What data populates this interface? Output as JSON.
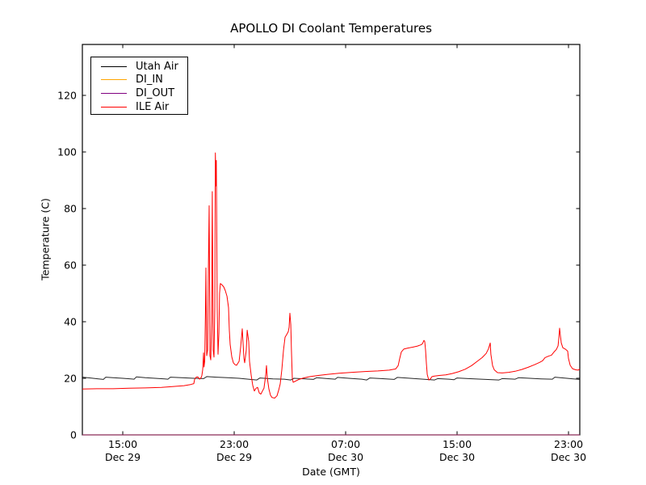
{
  "chart_data": {
    "type": "line",
    "title": "APOLLO DI Coolant Temperatures",
    "xlabel": "Date (GMT)",
    "ylabel": "Temperature (C)",
    "x_unit": "hours since Dec 29 00:00 GMT",
    "xlim": [
      12.1,
      47.81
    ],
    "ylim": [
      0,
      138
    ],
    "grid": false,
    "legend_position": "upper left",
    "x_ticks": [
      {
        "t": 15,
        "time": "15:00",
        "date": "Dec 29"
      },
      {
        "t": 23,
        "time": "23:00",
        "date": "Dec 29"
      },
      {
        "t": 31,
        "time": "07:00",
        "date": "Dec 30"
      },
      {
        "t": 39,
        "time": "15:00",
        "date": "Dec 30"
      },
      {
        "t": 47,
        "time": "23:00",
        "date": "Dec 30"
      }
    ],
    "y_ticks": [
      0,
      20,
      40,
      60,
      80,
      100,
      120
    ],
    "series": [
      {
        "name": "Utah Air",
        "color": "#000000",
        "opacity": 0.85,
        "points": [
          [
            12.1,
            20.4
          ],
          [
            12.68,
            20.1
          ],
          [
            13.26,
            19.8
          ],
          [
            13.61,
            19.6
          ],
          [
            13.78,
            20.4
          ],
          [
            14.3,
            20.2
          ],
          [
            15.0,
            20.0
          ],
          [
            15.58,
            19.8
          ],
          [
            15.81,
            19.7
          ],
          [
            15.98,
            20.5
          ],
          [
            16.62,
            20.2
          ],
          [
            17.32,
            20.0
          ],
          [
            18.01,
            19.8
          ],
          [
            18.24,
            19.7
          ],
          [
            18.42,
            20.4
          ],
          [
            19.23,
            20.2
          ],
          [
            20.1,
            20.0
          ],
          [
            20.8,
            19.9
          ],
          [
            21.03,
            20.6
          ],
          [
            21.72,
            20.4
          ],
          [
            22.54,
            20.2
          ],
          [
            23.35,
            20.0
          ],
          [
            24.16,
            19.6
          ],
          [
            24.62,
            19.4
          ],
          [
            24.85,
            20.1
          ],
          [
            25.78,
            19.8
          ],
          [
            26.59,
            19.7
          ],
          [
            27.06,
            19.4
          ],
          [
            27.29,
            20.0
          ],
          [
            28.1,
            19.8
          ],
          [
            28.68,
            19.6
          ],
          [
            28.91,
            20.2
          ],
          [
            29.67,
            19.9
          ],
          [
            30.25,
            19.7
          ],
          [
            30.42,
            20.3
          ],
          [
            31.23,
            20.0
          ],
          [
            32.16,
            19.7
          ],
          [
            32.51,
            19.4
          ],
          [
            32.74,
            20.1
          ],
          [
            33.55,
            19.9
          ],
          [
            34.48,
            19.6
          ],
          [
            34.71,
            20.3
          ],
          [
            35.64,
            20.0
          ],
          [
            36.57,
            19.7
          ],
          [
            37.38,
            19.4
          ],
          [
            37.61,
            19.9
          ],
          [
            38.42,
            19.7
          ],
          [
            38.77,
            19.5
          ],
          [
            39.0,
            20.1
          ],
          [
            39.81,
            19.9
          ],
          [
            40.74,
            19.7
          ],
          [
            41.55,
            19.5
          ],
          [
            42.01,
            19.4
          ],
          [
            42.24,
            19.9
          ],
          [
            43.17,
            19.7
          ],
          [
            43.41,
            20.2
          ],
          [
            44.22,
            20.0
          ],
          [
            45.03,
            19.8
          ],
          [
            45.84,
            19.7
          ],
          [
            46.02,
            20.4
          ],
          [
            46.65,
            20.1
          ],
          [
            47.35,
            19.8
          ],
          [
            47.81,
            19.6
          ]
        ]
      },
      {
        "name": "DI_IN",
        "color": "#ffa500",
        "opacity": 1,
        "points": [
          [
            12.1,
            0
          ],
          [
            47.81,
            0
          ]
        ]
      },
      {
        "name": "DI_OUT",
        "color": "#800080",
        "opacity": 0.75,
        "points": [
          [
            12.1,
            0
          ],
          [
            47.81,
            0
          ]
        ]
      },
      {
        "name": "ILE Air",
        "color": "#ff0000",
        "opacity": 1,
        "points": [
          [
            12.1,
            16.2
          ],
          [
            13.14,
            16.3
          ],
          [
            14.3,
            16.3
          ],
          [
            15.46,
            16.5
          ],
          [
            16.62,
            16.6
          ],
          [
            17.78,
            16.8
          ],
          [
            18.65,
            17.1
          ],
          [
            19.4,
            17.4
          ],
          [
            19.87,
            17.8
          ],
          [
            20.1,
            18.1
          ],
          [
            20.16,
            19.6
          ],
          [
            20.27,
            20.4
          ],
          [
            20.39,
            20.5
          ],
          [
            20.51,
            19.7
          ],
          [
            20.62,
            20.2
          ],
          [
            20.68,
            21.0
          ],
          [
            20.74,
            23.0
          ],
          [
            20.8,
            29.0
          ],
          [
            20.83,
            24.0
          ],
          [
            20.88,
            26.0
          ],
          [
            20.94,
            45.0
          ],
          [
            20.97,
            59.0
          ],
          [
            21.03,
            28.0
          ],
          [
            21.09,
            30.0
          ],
          [
            21.14,
            55.0
          ],
          [
            21.2,
            81.0
          ],
          [
            21.26,
            28.0
          ],
          [
            21.32,
            26.5
          ],
          [
            21.38,
            40.0
          ],
          [
            21.43,
            86.0
          ],
          [
            21.49,
            30.0
          ],
          [
            21.55,
            27.5
          ],
          [
            21.61,
            45.0
          ],
          [
            21.65,
            99.7
          ],
          [
            21.69,
            88.0
          ],
          [
            21.72,
            97.0
          ],
          [
            21.78,
            45.0
          ],
          [
            21.84,
            28.5
          ],
          [
            21.9,
            36.0
          ],
          [
            21.95,
            50.0
          ],
          [
            22.01,
            53.5
          ],
          [
            22.13,
            53.0
          ],
          [
            22.25,
            52.3
          ],
          [
            22.36,
            51.0
          ],
          [
            22.48,
            49.0
          ],
          [
            22.59,
            45.0
          ],
          [
            22.65,
            37.0
          ],
          [
            22.71,
            32.0
          ],
          [
            22.83,
            27.5
          ],
          [
            22.94,
            25.5
          ],
          [
            23.06,
            24.8
          ],
          [
            23.17,
            24.6
          ],
          [
            23.35,
            26.0
          ],
          [
            23.46,
            31.0
          ],
          [
            23.58,
            37.5
          ],
          [
            23.64,
            32.0
          ],
          [
            23.7,
            27.0
          ],
          [
            23.75,
            25.5
          ],
          [
            23.87,
            30.0
          ],
          [
            23.93,
            37.0
          ],
          [
            24.04,
            33.0
          ],
          [
            24.1,
            26.0
          ],
          [
            24.22,
            21.0
          ],
          [
            24.33,
            17.5
          ],
          [
            24.45,
            15.5
          ],
          [
            24.57,
            16.5
          ],
          [
            24.68,
            16.8
          ],
          [
            24.8,
            14.8
          ],
          [
            24.91,
            14.4
          ],
          [
            25.03,
            15.5
          ],
          [
            25.14,
            16.5
          ],
          [
            25.26,
            21.0
          ],
          [
            25.32,
            24.5
          ],
          [
            25.38,
            20.0
          ],
          [
            25.49,
            16.2
          ],
          [
            25.61,
            14.0
          ],
          [
            25.72,
            13.2
          ],
          [
            25.9,
            13.0
          ],
          [
            26.07,
            13.8
          ],
          [
            26.19,
            15.8
          ],
          [
            26.3,
            18.0
          ],
          [
            26.42,
            23.0
          ],
          [
            26.54,
            30.0
          ],
          [
            26.65,
            34.5
          ],
          [
            26.77,
            35.5
          ],
          [
            26.88,
            36.5
          ],
          [
            26.94,
            38.0
          ],
          [
            27.0,
            43.0
          ],
          [
            27.06,
            39.0
          ],
          [
            27.11,
            30.0
          ],
          [
            27.17,
            20.0
          ],
          [
            27.23,
            18.6
          ],
          [
            27.4,
            19.0
          ],
          [
            27.64,
            19.6
          ],
          [
            27.98,
            20.1
          ],
          [
            28.45,
            20.6
          ],
          [
            29.03,
            21.0
          ],
          [
            29.72,
            21.4
          ],
          [
            30.53,
            21.8
          ],
          [
            31.46,
            22.1
          ],
          [
            32.39,
            22.4
          ],
          [
            33.32,
            22.6
          ],
          [
            34.13,
            22.9
          ],
          [
            34.59,
            23.3
          ],
          [
            34.77,
            24.5
          ],
          [
            34.88,
            27.0
          ],
          [
            35.0,
            29.3
          ],
          [
            35.17,
            30.3
          ],
          [
            35.46,
            30.7
          ],
          [
            35.81,
            31.0
          ],
          [
            36.16,
            31.4
          ],
          [
            36.39,
            31.8
          ],
          [
            36.51,
            32.2
          ],
          [
            36.62,
            33.4
          ],
          [
            36.68,
            33.0
          ],
          [
            36.74,
            30.0
          ],
          [
            36.8,
            25.0
          ],
          [
            36.86,
            21.3
          ],
          [
            36.97,
            19.4
          ],
          [
            37.09,
            19.8
          ],
          [
            37.2,
            20.6
          ],
          [
            37.38,
            20.8
          ],
          [
            37.72,
            21.0
          ],
          [
            38.19,
            21.2
          ],
          [
            38.65,
            21.7
          ],
          [
            39.11,
            22.3
          ],
          [
            39.58,
            23.2
          ],
          [
            40.04,
            24.5
          ],
          [
            40.45,
            26.0
          ],
          [
            40.8,
            27.3
          ],
          [
            41.09,
            28.8
          ],
          [
            41.26,
            30.5
          ],
          [
            41.38,
            32.5
          ],
          [
            41.43,
            28.5
          ],
          [
            41.55,
            24.5
          ],
          [
            41.67,
            23.0
          ],
          [
            41.9,
            22.0
          ],
          [
            42.24,
            21.9
          ],
          [
            42.71,
            22.1
          ],
          [
            43.17,
            22.5
          ],
          [
            43.64,
            23.1
          ],
          [
            44.1,
            23.9
          ],
          [
            44.56,
            24.8
          ],
          [
            44.91,
            25.6
          ],
          [
            45.14,
            26.2
          ],
          [
            45.32,
            27.3
          ],
          [
            45.55,
            27.8
          ],
          [
            45.78,
            28.2
          ],
          [
            45.96,
            29.3
          ],
          [
            46.13,
            30.2
          ],
          [
            46.25,
            31.5
          ],
          [
            46.3,
            34.0
          ],
          [
            46.36,
            37.7
          ],
          [
            46.42,
            35.0
          ],
          [
            46.48,
            32.5
          ],
          [
            46.59,
            30.8
          ],
          [
            46.77,
            30.3
          ],
          [
            46.94,
            29.6
          ],
          [
            47.0,
            27.0
          ],
          [
            47.12,
            24.6
          ],
          [
            47.29,
            23.4
          ],
          [
            47.52,
            23.0
          ],
          [
            47.7,
            22.9
          ],
          [
            47.81,
            23.3
          ]
        ]
      }
    ]
  }
}
